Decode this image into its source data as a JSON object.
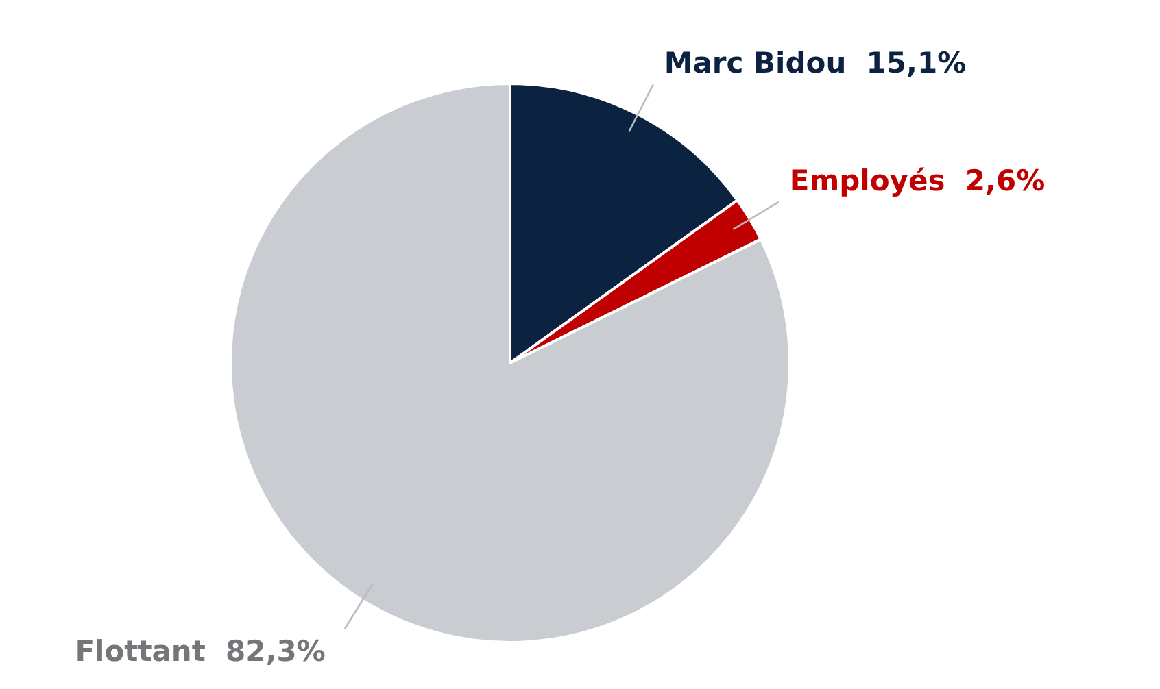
{
  "chart_data": {
    "type": "pie",
    "categories": [
      "Marc Bidou",
      "Employés",
      "Flottant"
    ],
    "values": [
      15.1,
      2.6,
      82.3
    ],
    "value_labels": [
      "15,1%",
      "2,6%",
      "82,3%"
    ],
    "colors": [
      "#0b2240",
      "#c00000",
      "#c9ccd1"
    ],
    "legend": false
  }
}
